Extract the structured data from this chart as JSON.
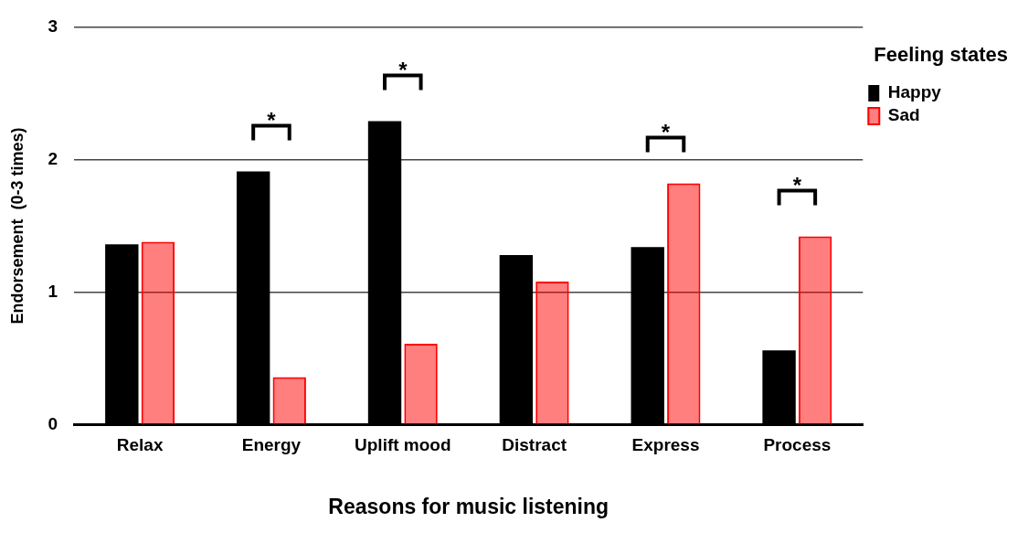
{
  "chart_data": {
    "type": "bar",
    "xlabel": "Reasons for music listening",
    "ylabel": "Endorsement  (0-3 times)",
    "legend_title": "Feeling states",
    "categories": [
      "Relax",
      "Energy",
      "Uplift mood",
      "Distract",
      "Express",
      "Process"
    ],
    "series": [
      {
        "name": "Happy",
        "color": "#000000",
        "values": [
          1.36,
          1.91,
          2.29,
          1.28,
          1.34,
          0.56
        ]
      },
      {
        "name": "Sad",
        "color": "#ff0000",
        "values": [
          1.38,
          0.36,
          0.61,
          1.08,
          1.82,
          1.42
        ]
      }
    ],
    "ylim": [
      0,
      3
    ],
    "yticks": [
      0,
      1,
      2,
      3
    ],
    "grid": "y",
    "legend": "top right",
    "annotations": [
      {
        "text": "*",
        "x": "Energy",
        "y": 1.91
      },
      {
        "text": "*",
        "x": "Uplift mood",
        "y": 2.29
      },
      {
        "text": "*",
        "x": "Express",
        "y": 1.82
      },
      {
        "text": "*",
        "x": "Process",
        "y": 1.42
      }
    ]
  }
}
